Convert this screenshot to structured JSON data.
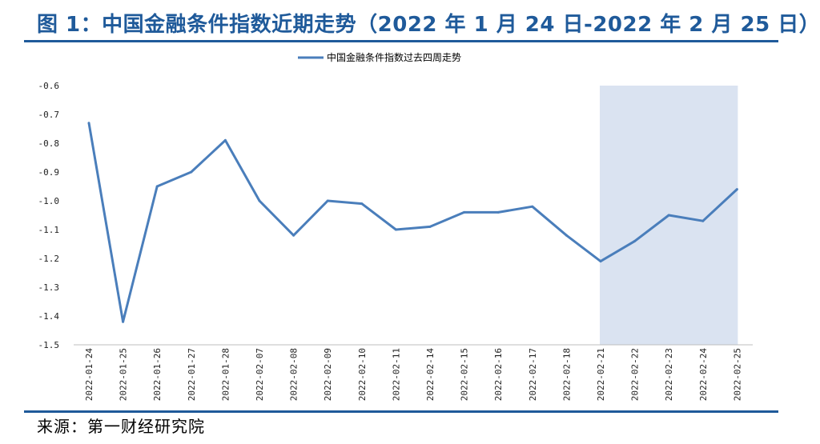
{
  "header": {
    "title": "图 1：中国金融条件指数近期走势（2022 年 1 月 24 日-2022 年 2 月 25 日）"
  },
  "footer": {
    "source": "来源：第一财经研究院"
  },
  "colors": {
    "accent": "#1f5a9a",
    "line": "#4a7ebb",
    "highlight": "#dae3f1"
  },
  "chart_data": {
    "type": "line",
    "title": "",
    "xlabel": "",
    "ylabel": "",
    "x": [
      "2022-01-24",
      "2022-01-25",
      "2022-01-26",
      "2022-01-27",
      "2022-01-28",
      "2022-02-07",
      "2022-02-08",
      "2022-02-09",
      "2022-02-10",
      "2022-02-11",
      "2022-02-14",
      "2022-02-15",
      "2022-02-16",
      "2022-02-17",
      "2022-02-18",
      "2022-02-21",
      "2022-02-22",
      "2022-02-23",
      "2022-02-24",
      "2022-02-25"
    ],
    "series": [
      {
        "name": "中国金融条件指数过去四周走势",
        "values": [
          -0.73,
          -1.42,
          -0.95,
          -0.9,
          -0.79,
          -1.0,
          -1.12,
          -1.0,
          -1.01,
          -1.1,
          -1.09,
          -1.04,
          -1.04,
          -1.02,
          -1.12,
          -1.21,
          -1.14,
          -1.05,
          -1.07,
          -0.96
        ]
      }
    ],
    "ylim": [
      -1.5,
      -0.6
    ],
    "yticks": [
      "-0.6",
      "-0.7",
      "-0.8",
      "-0.9",
      "-1.0",
      "-1.1",
      "-1.2",
      "-1.3",
      "-1.4",
      "-1.5"
    ],
    "shaded_range": [
      "2022-02-21",
      "2022-02-25"
    ],
    "legend_position": "top-center",
    "grid": false
  }
}
